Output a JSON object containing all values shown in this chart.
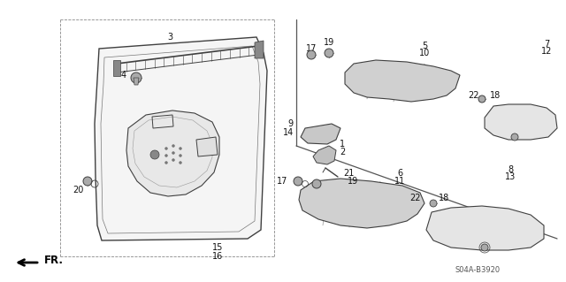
{
  "bg_color": "#ffffff",
  "fig_width": 6.4,
  "fig_height": 3.19,
  "dpi": 100,
  "part_code": "S04A-B3920",
  "line_color": "#404040",
  "text_color": "#111111",
  "gray_line": "#888888",
  "light_gray": "#cccccc",
  "mid_gray": "#999999",
  "dark_fill": "#505050",
  "panel_fill": "#f0f0f0",
  "fs_label": 7.0,
  "fs_code": 6.0
}
